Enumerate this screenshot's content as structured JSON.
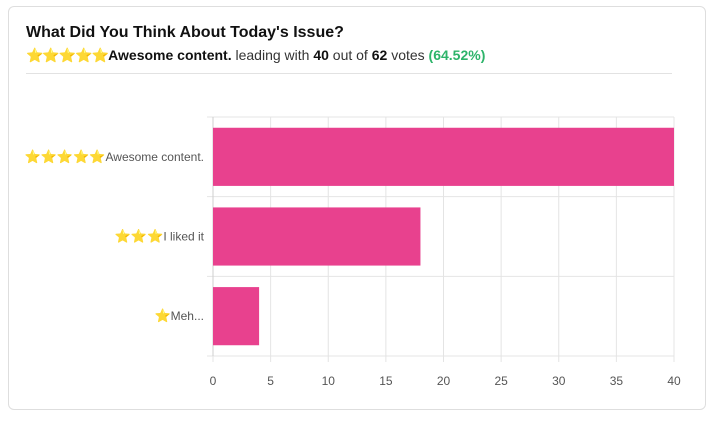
{
  "header": {
    "title": "What Did You Think About Today's Issue?",
    "leader_stars": "⭐⭐⭐⭐⭐",
    "leader_label": "Awesome content.",
    "text_leading": "leading with",
    "leader_votes": "40",
    "text_out_of": "out of",
    "total_votes": "62",
    "text_votes": "votes",
    "leader_percent": "(64.52%)"
  },
  "colors": {
    "bar": "#e8418e",
    "percent": "#2db46a",
    "star": "#f3b726",
    "grid": "#e4e4e4"
  },
  "chart_data": {
    "type": "bar",
    "orientation": "horizontal",
    "categories": [
      {
        "stars": "⭐⭐⭐⭐⭐",
        "label": "Awesome content."
      },
      {
        "stars": "⭐⭐⭐",
        "label": "I liked it"
      },
      {
        "stars": "⭐",
        "label": "Meh..."
      }
    ],
    "values": [
      40,
      18,
      4
    ],
    "xlim": [
      0,
      40
    ],
    "xticks": [
      0,
      5,
      10,
      15,
      20,
      25,
      30,
      35,
      40
    ],
    "grid": true
  }
}
